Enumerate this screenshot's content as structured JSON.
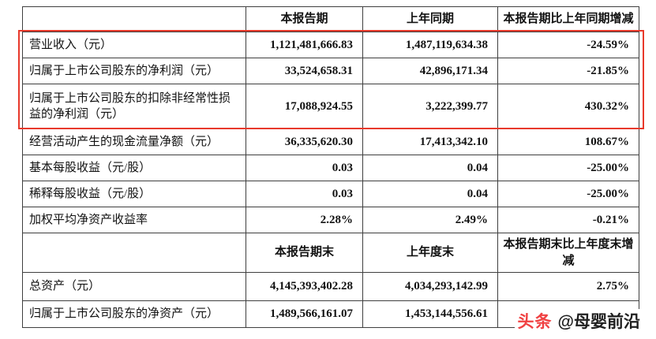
{
  "table": {
    "section1": {
      "headers": {
        "col1": "",
        "col2": "本报告期",
        "col3": "上年同期",
        "col4": "本报告期比上年同期增减"
      },
      "rows": [
        {
          "label": "营业收入（元）",
          "current": "1,121,481,666.83",
          "prior": "1,487,119,634.38",
          "change": "-24.59%"
        },
        {
          "label": "归属于上市公司股东的净利润（元）",
          "current": "33,524,658.31",
          "prior": "42,896,171.34",
          "change": "-21.85%"
        },
        {
          "label": "归属于上市公司股东的扣除非经常性损益的净利润（元）",
          "current": "17,088,924.55",
          "prior": "3,222,399.77",
          "change": "430.32%"
        },
        {
          "label": "经营活动产生的现金流量净额（元）",
          "current": "36,335,620.30",
          "prior": "17,413,342.10",
          "change": "108.67%"
        },
        {
          "label": "基本每股收益（元/股）",
          "current": "0.03",
          "prior": "0.04",
          "change": "-25.00%"
        },
        {
          "label": "稀释每股收益（元/股）",
          "current": "0.03",
          "prior": "0.04",
          "change": "-25.00%"
        },
        {
          "label": "加权平均净资产收益率",
          "current": "2.28%",
          "prior": "2.49%",
          "change": "-0.21%"
        }
      ]
    },
    "section2": {
      "headers": {
        "col1": "",
        "col2": "本报告期末",
        "col3": "上年度末",
        "col4": "本报告期末比上年度末增减"
      },
      "rows": [
        {
          "label": "总资产（元）",
          "current": "4,145,393,402.28",
          "prior": "4,034,293,142.99",
          "change": "2.75%"
        },
        {
          "label": "归属于上市公司股东的净资产（元）",
          "current": "1,489,566,161.07",
          "prior": "1,453,144,556.61",
          "change": ""
        }
      ]
    }
  },
  "annotation": {
    "highlight_color": "#e8392b"
  },
  "watermark": {
    "brand": "头条",
    "handle": "@母婴前沿"
  }
}
